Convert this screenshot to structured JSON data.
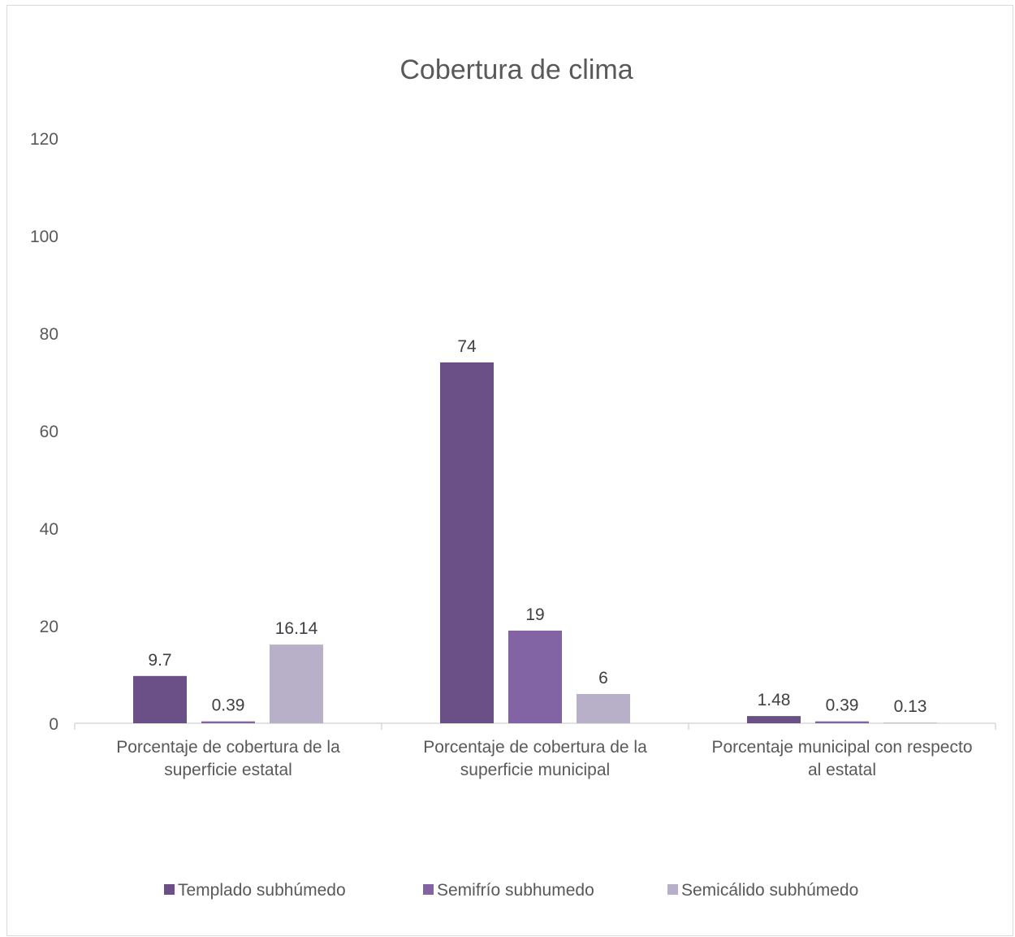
{
  "chart_data": {
    "type": "bar",
    "title": "Cobertura de clima",
    "xlabel": "",
    "ylabel": "",
    "ylim": [
      0,
      120
    ],
    "yticks": [
      0,
      20,
      40,
      60,
      80,
      100,
      120
    ],
    "grid": false,
    "legend_position": "bottom",
    "categories": [
      [
        "Porcentaje de cobertura de la",
        "superficie estatal"
      ],
      [
        "Porcentaje de cobertura de la",
        "superficie municipal"
      ],
      [
        "Porcentaje municipal con respecto",
        "al estatal"
      ]
    ],
    "series": [
      {
        "name": "Templado subhúmedo",
        "color": "#6a5087",
        "values": [
          9.7,
          74,
          1.48
        ],
        "labels": [
          "9.7",
          "74",
          "1.48"
        ]
      },
      {
        "name": "Semifrío subhumedo",
        "color": "#8263a3",
        "values": [
          0.39,
          19,
          0.39
        ],
        "labels": [
          "0.39",
          "19",
          "0.39"
        ]
      },
      {
        "name": "Semicálido subhúmedo",
        "color": "#b8afc9",
        "values": [
          16.14,
          6,
          0.13
        ],
        "labels": [
          "16.14",
          "6",
          "0.13"
        ]
      }
    ]
  }
}
